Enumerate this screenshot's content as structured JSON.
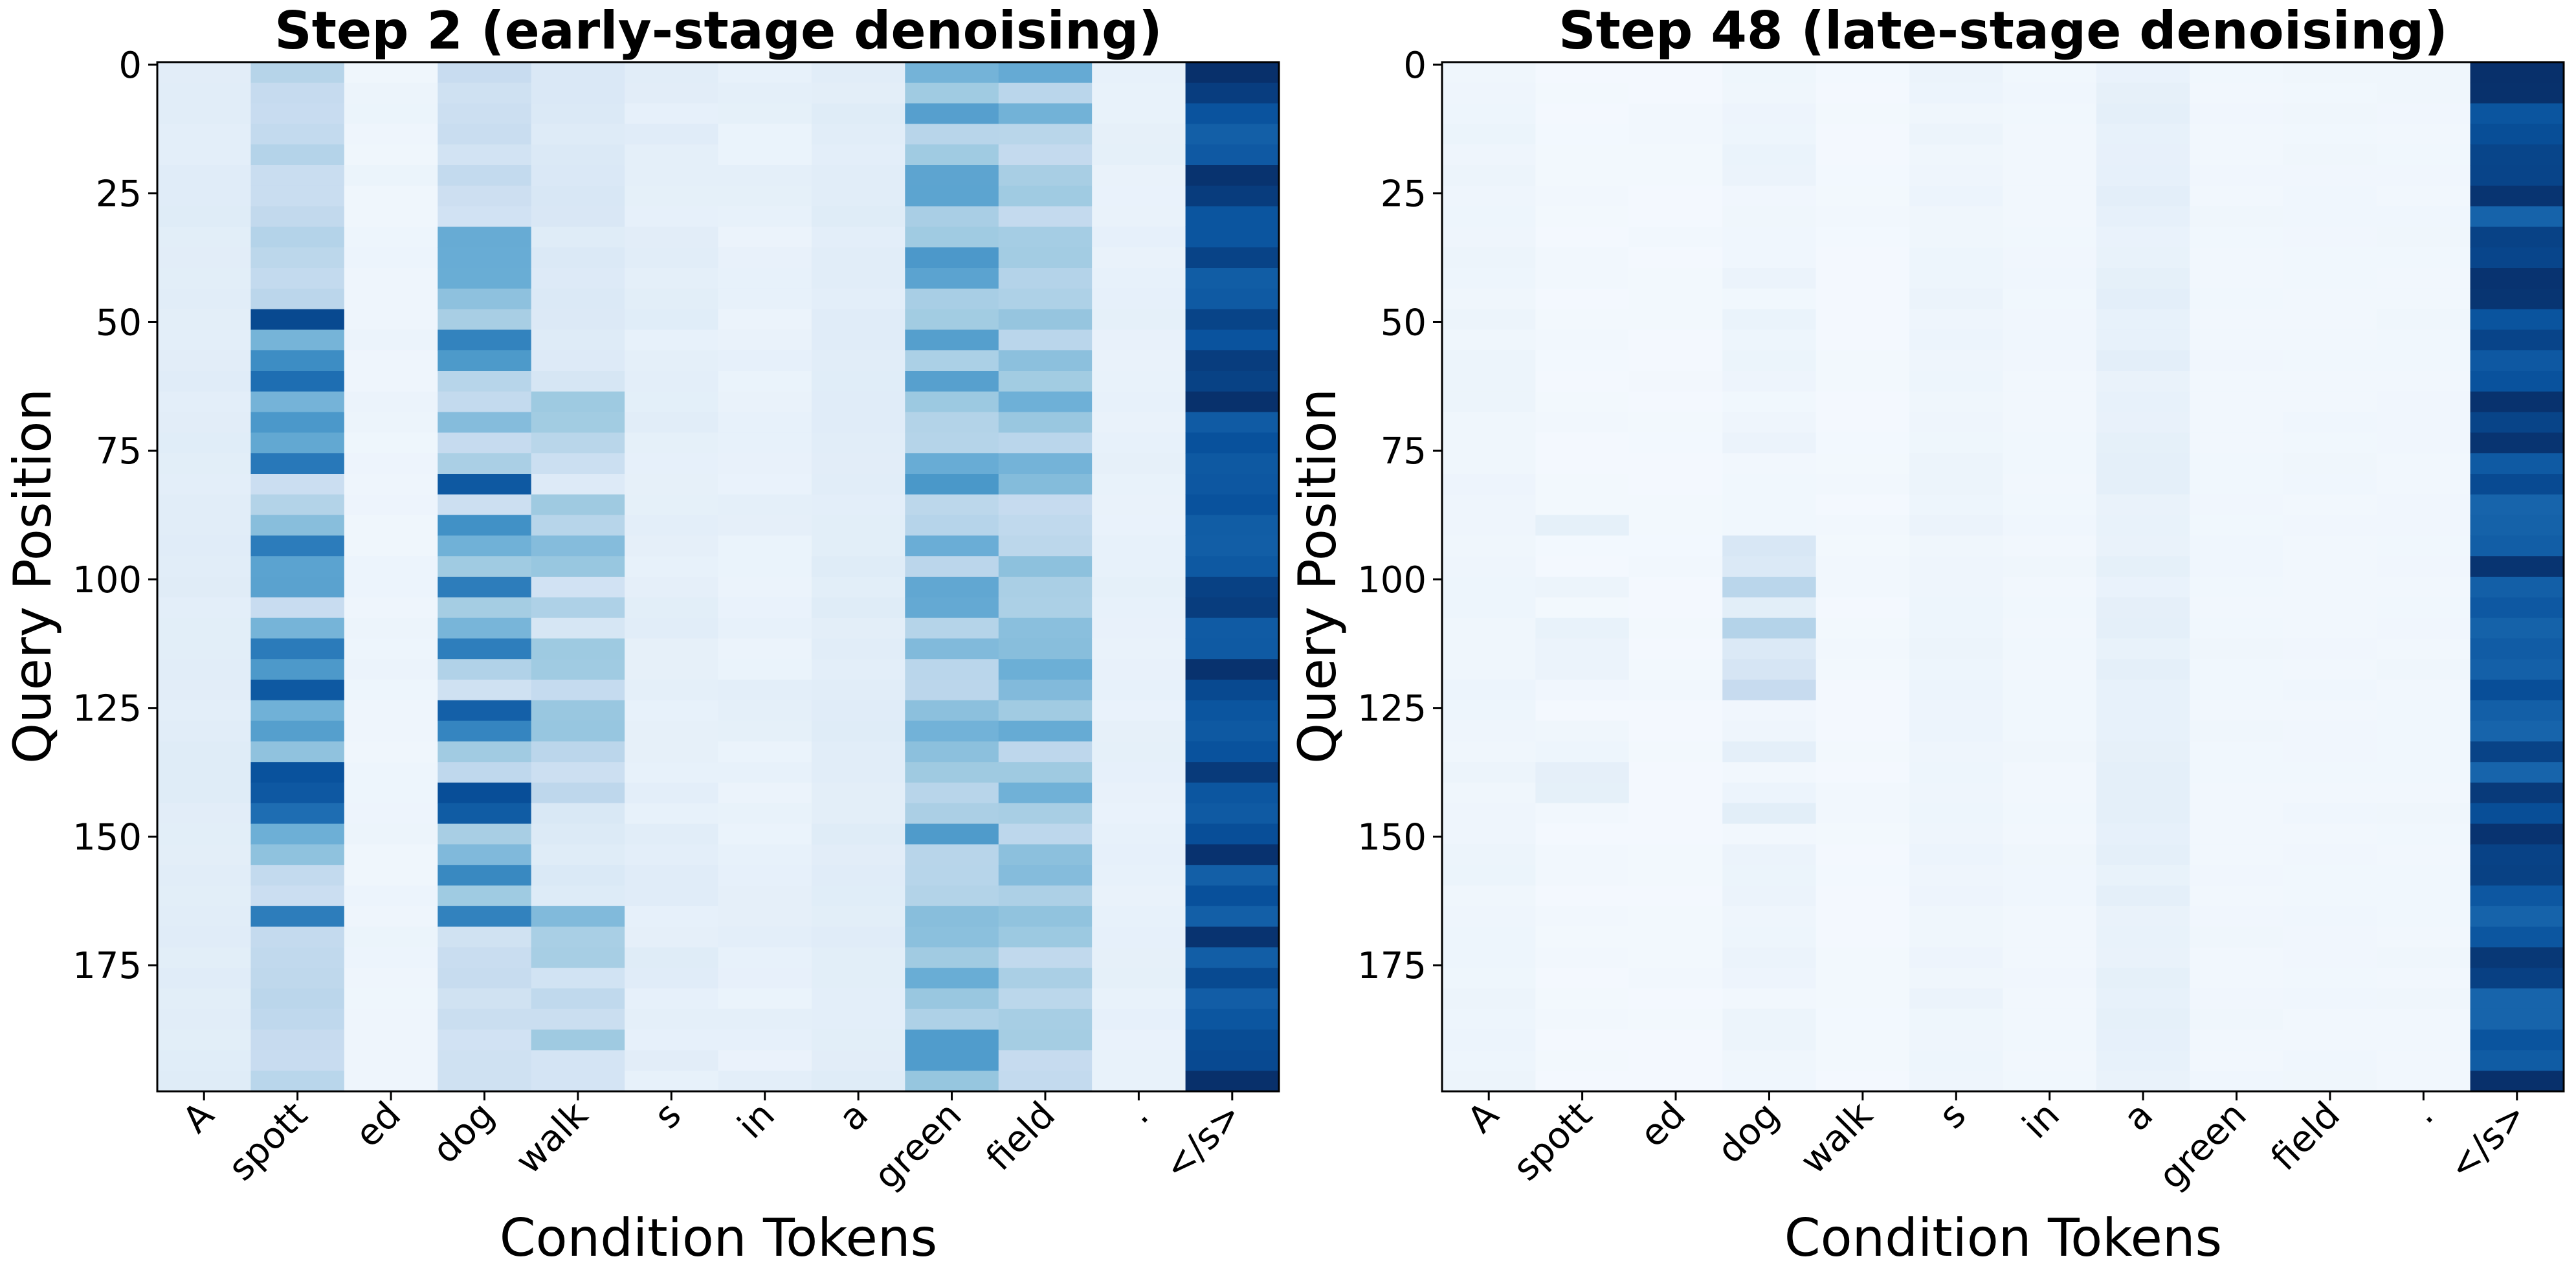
{
  "chart_data": [
    {
      "type": "heatmap",
      "title": "Step 2 (early-stage denoising)",
      "xlabel": "Condition Tokens",
      "ylabel": "Query Position",
      "x_tokens": [
        "A",
        "spott",
        "ed",
        "dog",
        "walk",
        "s",
        "in",
        "a",
        "green",
        "field",
        ".",
        "</s>"
      ],
      "y_ticks": [
        0,
        25,
        50,
        75,
        100,
        125,
        150,
        175
      ],
      "y_range": [
        0,
        200
      ],
      "colormap": "Blues",
      "value_scale": "relative attention (0 = white, 1 = dark blue)",
      "column_profile": [
        {
          "token": "A",
          "base": 0.1,
          "peak": 0.12,
          "strong_rows": [
            0,
            200
          ]
        },
        {
          "token": "spott",
          "base": 0.22,
          "peak": 0.95,
          "strong_rows": [
            45,
            165
          ]
        },
        {
          "token": "ed",
          "base": 0.04,
          "peak": 0.06,
          "strong_rows": [
            0,
            200
          ]
        },
        {
          "token": "dog",
          "base": 0.18,
          "peak": 0.92,
          "strong_rows": [
            30,
            165
          ]
        },
        {
          "token": "walk",
          "base": 0.12,
          "peak": 0.45,
          "strong_rows": [
            60,
            200
          ]
        },
        {
          "token": "s",
          "base": 0.08,
          "peak": 0.12,
          "strong_rows": [
            0,
            200
          ]
        },
        {
          "token": "in",
          "base": 0.06,
          "peak": 0.1,
          "strong_rows": [
            0,
            200
          ]
        },
        {
          "token": "a",
          "base": 0.1,
          "peak": 0.12,
          "strong_rows": [
            0,
            200
          ]
        },
        {
          "token": "green",
          "base": 0.28,
          "peak": 0.6,
          "strong_rows": [
            0,
            200
          ]
        },
        {
          "token": "field",
          "base": 0.25,
          "peak": 0.52,
          "strong_rows": [
            0,
            200
          ]
        },
        {
          "token": ".",
          "base": 0.07,
          "peak": 0.09,
          "strong_rows": [
            0,
            200
          ]
        },
        {
          "token": "</s>",
          "base": 0.82,
          "peak": 1.0,
          "strong_rows": [
            0,
            200
          ]
        }
      ]
    },
    {
      "type": "heatmap",
      "title": "Step 48 (late-stage denoising)",
      "xlabel": "Condition Tokens",
      "ylabel": "Query Position",
      "x_tokens": [
        "A",
        "spott",
        "ed",
        "dog",
        "walk",
        "s",
        "in",
        "a",
        "green",
        "field",
        ".",
        "</s>"
      ],
      "y_ticks": [
        0,
        25,
        50,
        75,
        100,
        125,
        150,
        175
      ],
      "y_range": [
        0,
        200
      ],
      "colormap": "Blues",
      "value_scale": "relative attention (0 = white, 1 = dark blue)",
      "column_profile": [
        {
          "token": "A",
          "base": 0.04,
          "peak": 0.06,
          "strong_rows": [
            0,
            200
          ]
        },
        {
          "token": "spott",
          "base": 0.02,
          "peak": 0.1,
          "strong_rows": [
            85,
            145
          ]
        },
        {
          "token": "ed",
          "base": 0.02,
          "peak": 0.03,
          "strong_rows": [
            0,
            200
          ]
        },
        {
          "token": "dog",
          "base": 0.03,
          "peak": 0.32,
          "strong_rows": [
            85,
            145
          ]
        },
        {
          "token": "walk",
          "base": 0.02,
          "peak": 0.03,
          "strong_rows": [
            0,
            200
          ]
        },
        {
          "token": "s",
          "base": 0.04,
          "peak": 0.06,
          "strong_rows": [
            0,
            200
          ]
        },
        {
          "token": "in",
          "base": 0.03,
          "peak": 0.04,
          "strong_rows": [
            0,
            200
          ]
        },
        {
          "token": "a",
          "base": 0.07,
          "peak": 0.1,
          "strong_rows": [
            0,
            200
          ]
        },
        {
          "token": "green",
          "base": 0.03,
          "peak": 0.04,
          "strong_rows": [
            0,
            200
          ]
        },
        {
          "token": "field",
          "base": 0.03,
          "peak": 0.04,
          "strong_rows": [
            0,
            200
          ]
        },
        {
          "token": ".",
          "base": 0.03,
          "peak": 0.04,
          "strong_rows": [
            0,
            200
          ]
        },
        {
          "token": "</s>",
          "base": 0.8,
          "peak": 1.0,
          "strong_rows": [
            0,
            200
          ]
        }
      ]
    }
  ]
}
